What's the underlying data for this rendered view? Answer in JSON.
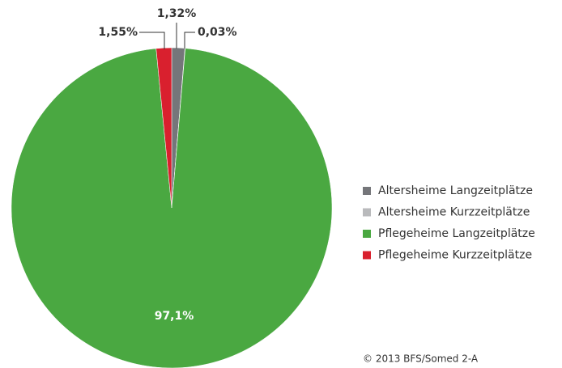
{
  "chart_data": {
    "type": "pie",
    "categories": [
      "Altersheime Langzeitplätze",
      "Altersheime Kurzzeitplätze",
      "Pflegeheime Langzeitplätze",
      "Pflegeheime Kurzzeitplätze"
    ],
    "values": [
      1.32,
      0.03,
      97.1,
      1.55
    ],
    "value_labels": [
      "1,32%",
      "0,03%",
      "97,1%",
      "1,55%"
    ],
    "colors": [
      "#75767a",
      "#b9babc",
      "#4aa841",
      "#d9202e"
    ],
    "legend": "right",
    "source": "© 2013 BFS/Somed 2-A"
  }
}
